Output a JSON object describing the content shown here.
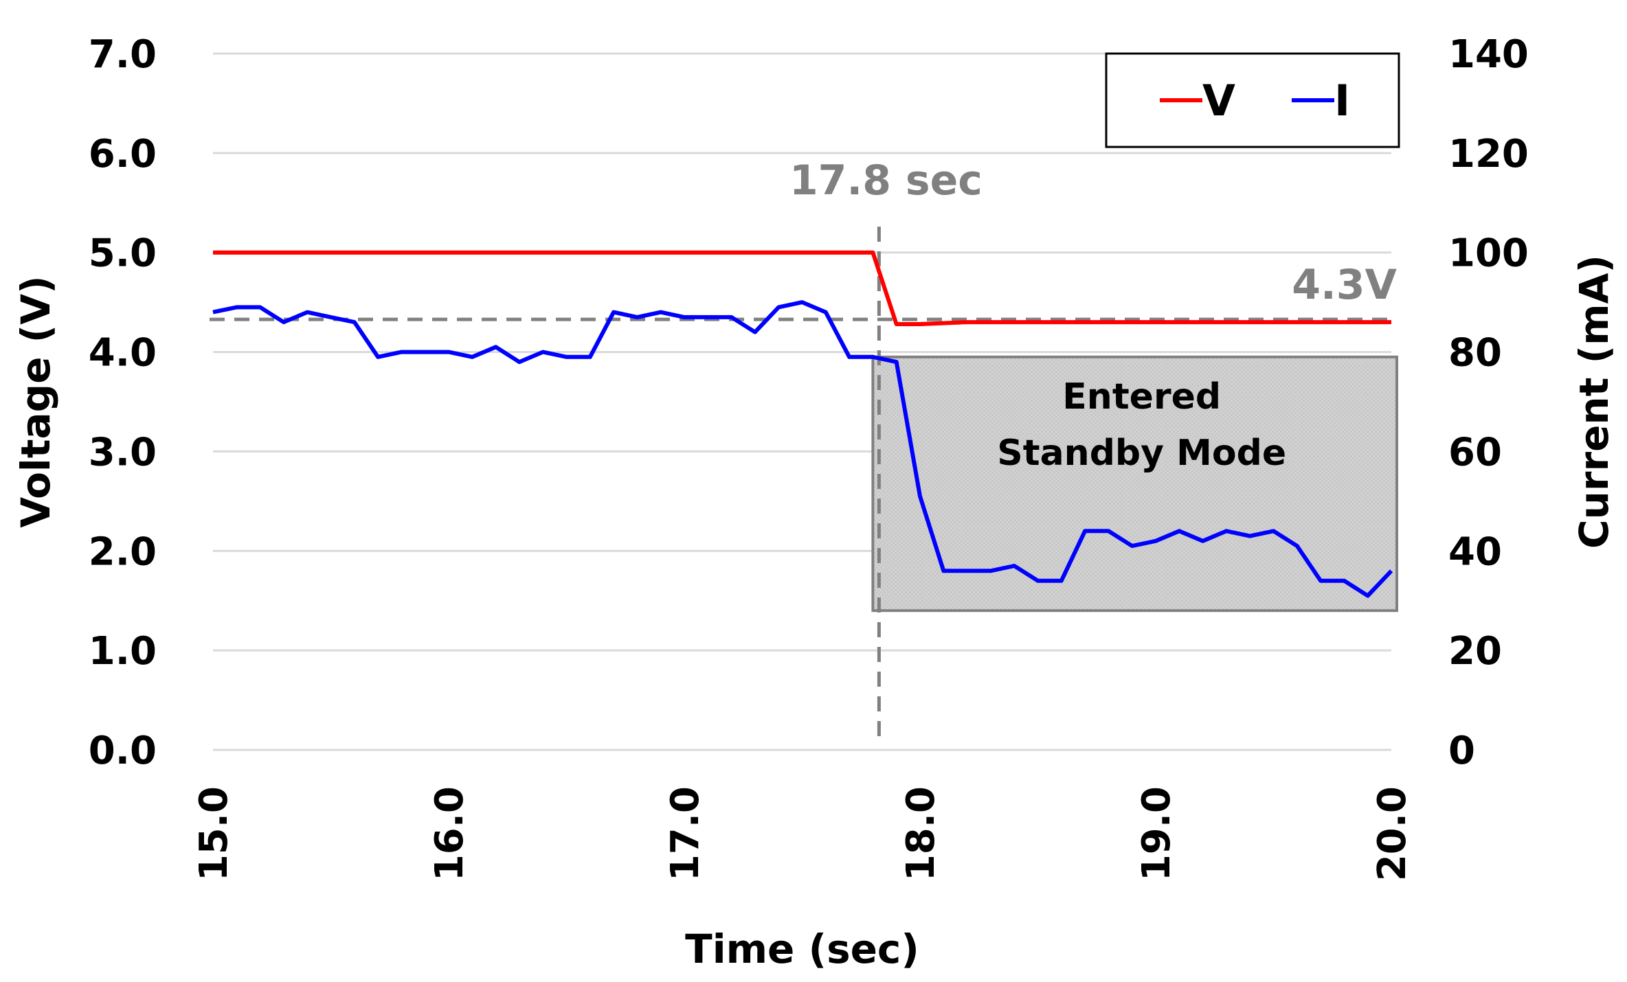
{
  "chart_data": {
    "type": "line",
    "xlabel": "Time (sec)",
    "ylabel_left": "Voltage (V)",
    "ylabel_right": "Current (mA)",
    "xlim": [
      15.0,
      20.0
    ],
    "ylim_left": [
      0.0,
      7.0
    ],
    "ylim_right": [
      0,
      140
    ],
    "x_ticks": [
      "15.0",
      "16.0",
      "17.0",
      "18.0",
      "19.0",
      "20.0"
    ],
    "y_ticks_left": [
      "0.0",
      "1.0",
      "2.0",
      "3.0",
      "4.0",
      "5.0",
      "6.0",
      "7.0"
    ],
    "y_ticks_right": [
      "0",
      "20",
      "40",
      "60",
      "80",
      "100",
      "120",
      "140"
    ],
    "grid": true,
    "legend_position": "top-right",
    "series": [
      {
        "name": "V",
        "axis": "left",
        "color": "#ff0000",
        "x": [
          15.0,
          15.5,
          16.0,
          16.5,
          17.0,
          17.5,
          17.8,
          17.9,
          18.0,
          18.2,
          18.5,
          19.0,
          19.5,
          20.0
        ],
        "values": [
          5.0,
          5.0,
          5.0,
          5.0,
          5.0,
          5.0,
          5.0,
          4.28,
          4.28,
          4.3,
          4.3,
          4.3,
          4.3,
          4.3
        ]
      },
      {
        "name": "I",
        "axis": "right",
        "color": "#0000ff",
        "x": [
          15.0,
          15.1,
          15.2,
          15.3,
          15.4,
          15.5,
          15.6,
          15.7,
          15.8,
          15.9,
          16.0,
          16.1,
          16.2,
          16.3,
          16.4,
          16.5,
          16.6,
          16.7,
          16.8,
          16.9,
          17.0,
          17.1,
          17.2,
          17.3,
          17.4,
          17.5,
          17.6,
          17.7,
          17.8,
          17.9,
          18.0,
          18.1,
          18.2,
          18.3,
          18.4,
          18.5,
          18.6,
          18.7,
          18.8,
          18.9,
          19.0,
          19.1,
          19.2,
          19.3,
          19.4,
          19.5,
          19.6,
          19.7,
          19.8,
          19.9,
          20.0
        ],
        "values": [
          88,
          89,
          89,
          86,
          88,
          87,
          86,
          79,
          80,
          80,
          80,
          79,
          81,
          78,
          80,
          79,
          79,
          88,
          87,
          88,
          87,
          87,
          87,
          84,
          89,
          90,
          88,
          79,
          79,
          78,
          51,
          36,
          36,
          36,
          37,
          34,
          34,
          44,
          44,
          41,
          42,
          44,
          42,
          44,
          43,
          44,
          41,
          34,
          34,
          31,
          36
        ]
      }
    ],
    "annotations": {
      "time_marker_label": "17.8 sec",
      "time_marker_x": 17.8,
      "voltage_ref_label": "4.3V",
      "voltage_ref_value": 4.3,
      "standby_box": {
        "line1": "Entered",
        "line2": "Standby Mode",
        "x_from": 17.8,
        "x_to": 20.0,
        "y_from": 1.4,
        "y_to": 3.95,
        "fill": "#d0d0d0"
      }
    },
    "colors": {
      "grid": "#d9d9d9",
      "reference": "#808080"
    }
  }
}
